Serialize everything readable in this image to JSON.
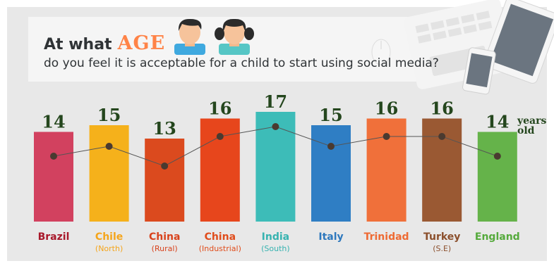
{
  "header": {
    "line1_prefix": "At what",
    "line1_emphasis": "AGE",
    "line2": "do you feel it is acceptable for a child to start using social media?"
  },
  "icons": [
    "boy-avatar-icon",
    "girl-avatar-icon",
    "laptop-icon",
    "tablet-icon",
    "smartphone-icon",
    "mouse-icon"
  ],
  "chart_data": {
    "type": "bar",
    "categories": [
      "Brazil",
      "Chile",
      "China",
      "China",
      "India",
      "Italy",
      "Trinidad",
      "Turkey",
      "England"
    ],
    "sublabels": [
      "",
      "(North)",
      "(Rural)",
      "(Industrial)",
      "(South)",
      "",
      "",
      "(S.E)",
      ""
    ],
    "values": [
      14,
      15,
      13,
      16,
      17,
      15,
      16,
      16,
      14
    ],
    "unit_label": [
      "years",
      "old"
    ],
    "overlay_line": true,
    "colors": [
      "#d2415f",
      "#f5b11b",
      "#db4a1e",
      "#e7461c",
      "#3dbcb8",
      "#2f7ec4",
      "#f0703a",
      "#9a5933",
      "#65b34a"
    ],
    "label_colors": [
      "#a8182a",
      "#f5a51b",
      "#d8431d",
      "#e04d1c",
      "#37b3b0",
      "#2e78bd",
      "#ee6a33",
      "#8b4f2c",
      "#55aa3c"
    ],
    "value_color": "#24461d",
    "line_color": "#555555",
    "marker_color": "#4a3a30"
  }
}
